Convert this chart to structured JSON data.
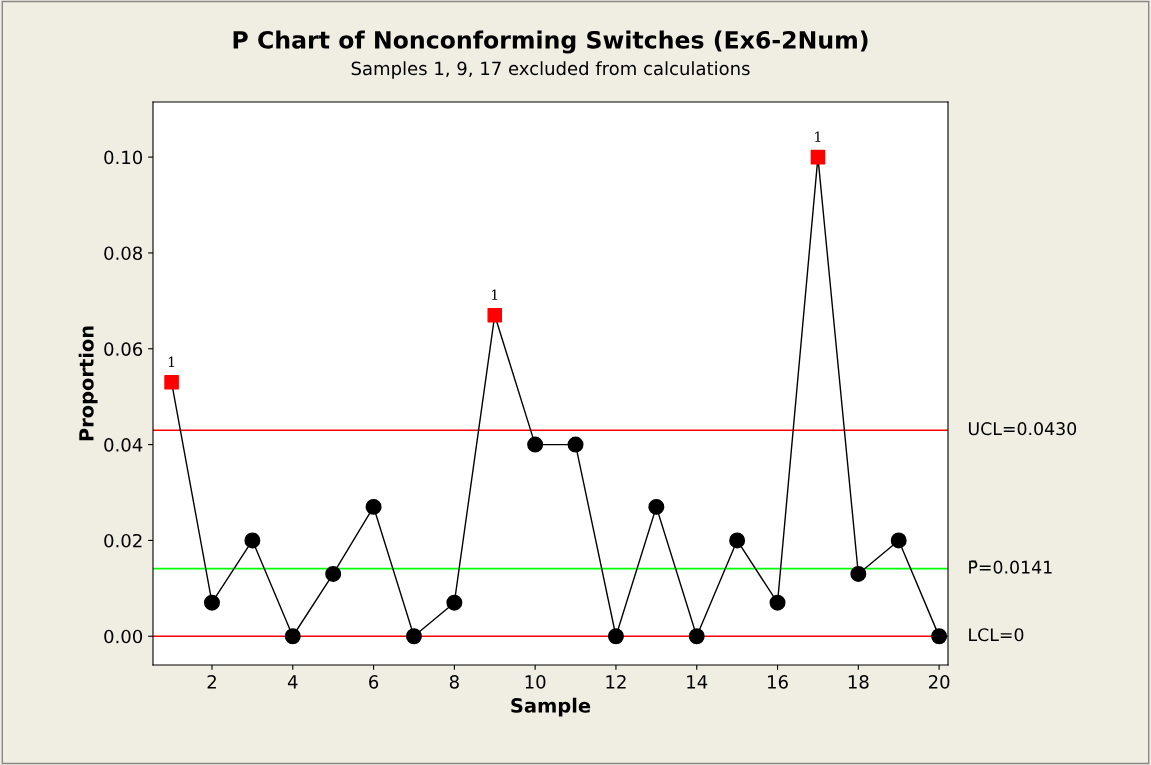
{
  "chart_data": {
    "type": "line",
    "title": "P Chart of Nonconforming Switches (Ex6-2Num)",
    "subtitle": "Samples 1, 9, 17 excluded from calculations",
    "xlabel": "Sample",
    "ylabel": "Proportion",
    "xlim": [
      0.54,
      20.22
    ],
    "xticks": [
      2,
      4,
      6,
      8,
      10,
      12,
      14,
      16,
      18,
      20
    ],
    "ylim": [
      -0.006,
      0.1115
    ],
    "yticks": [
      {
        "value": 0,
        "label": "0.00"
      },
      {
        "value": 0.02,
        "label": "0.02"
      },
      {
        "value": 0.04,
        "label": "0.04"
      },
      {
        "value": 0.06,
        "label": "0.06"
      },
      {
        "value": 0.08,
        "label": "0.08"
      },
      {
        "value": 0.1,
        "label": "0.10"
      }
    ],
    "grid": false,
    "legend": false,
    "series": [
      {
        "color": "#000000",
        "marker": "none",
        "x": [
          1,
          2,
          3,
          4,
          5,
          6,
          7,
          8,
          9,
          10,
          11,
          12,
          13,
          14,
          15,
          16,
          17,
          18,
          19,
          20
        ],
        "values": [
          0.053,
          0.007,
          0.02,
          0,
          0.013,
          0.027,
          0,
          0.007,
          0.067,
          0.04,
          0.04,
          0,
          0.027,
          0,
          0.02,
          0.007,
          0.1,
          0.013,
          0.02,
          0
        ]
      },
      {
        "type": "scatter",
        "color": "#000000",
        "marker": "circle",
        "x": [
          2,
          3,
          4,
          5,
          6,
          7,
          8,
          10,
          11,
          12,
          13,
          14,
          15,
          16,
          18,
          19,
          20
        ],
        "values": [
          0.007,
          0.02,
          0,
          0.013,
          0.027,
          0,
          0.007,
          0.04,
          0.04,
          0,
          0.027,
          0,
          0.02,
          0.007,
          0.013,
          0.02,
          0
        ]
      },
      {
        "type": "scatter",
        "color": "#ff0000",
        "marker": "square",
        "x": [
          1,
          9,
          17
        ],
        "values": [
          0.053,
          0.067,
          0.1
        ]
      }
    ],
    "ref_lines": [
      {
        "axis": "y",
        "value": 0.043,
        "label": "UCL=0.0430",
        "color": "#ff0000"
      },
      {
        "axis": "y",
        "value": 0.0141,
        "label": "P̄=0.0141",
        "color": "#00ff00"
      },
      {
        "axis": "y",
        "value": 0,
        "label": "LCL=0",
        "color": "#ff0000"
      }
    ],
    "annotations": [
      {
        "text": "1",
        "x": 1,
        "y": 0.053
      },
      {
        "text": "1",
        "x": 9,
        "y": 0.067
      },
      {
        "text": "1",
        "x": 17,
        "y": 0.1
      }
    ]
  }
}
